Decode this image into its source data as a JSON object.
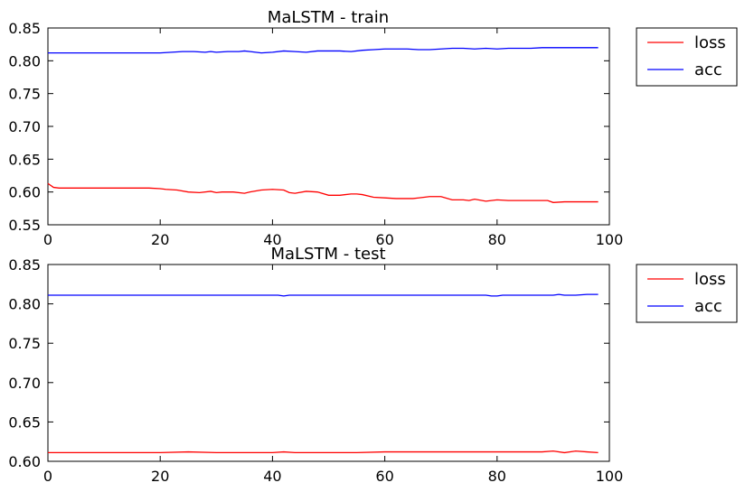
{
  "chart_data": [
    {
      "type": "line",
      "title": "MaLSTM - train",
      "xlabel": "",
      "ylabel": "",
      "xlim": [
        0,
        100
      ],
      "ylim": [
        0.55,
        0.85
      ],
      "xticks": [
        "0",
        "20",
        "40",
        "60",
        "80",
        "100"
      ],
      "yticks": [
        "0.55",
        "0.60",
        "0.65",
        "0.70",
        "0.75",
        "0.80",
        "0.85"
      ],
      "grid": false,
      "legend": {
        "placement": "outside-right-top",
        "entries": [
          "loss",
          "acc"
        ]
      },
      "series": [
        {
          "name": "loss",
          "color": "#ff0000",
          "x": [
            0,
            1,
            2,
            5,
            10,
            15,
            18,
            20,
            21,
            23,
            25,
            27,
            29,
            30,
            31,
            33,
            35,
            36,
            38,
            40,
            42,
            43,
            44,
            46,
            48,
            50,
            52,
            54,
            55,
            56,
            58,
            60,
            62,
            64,
            65,
            66,
            68,
            70,
            72,
            74,
            75,
            76,
            78,
            80,
            82,
            84,
            86,
            88,
            89,
            90,
            92,
            94,
            96,
            98
          ],
          "y": [
            0.613,
            0.607,
            0.606,
            0.606,
            0.606,
            0.606,
            0.606,
            0.605,
            0.604,
            0.603,
            0.6,
            0.599,
            0.601,
            0.599,
            0.6,
            0.6,
            0.598,
            0.6,
            0.603,
            0.604,
            0.603,
            0.599,
            0.598,
            0.601,
            0.6,
            0.595,
            0.595,
            0.597,
            0.597,
            0.596,
            0.592,
            0.591,
            0.59,
            0.59,
            0.59,
            0.591,
            0.593,
            0.593,
            0.588,
            0.588,
            0.587,
            0.589,
            0.586,
            0.588,
            0.587,
            0.587,
            0.587,
            0.587,
            0.587,
            0.584,
            0.585,
            0.585,
            0.585,
            0.585
          ]
        },
        {
          "name": "acc",
          "color": "#0000ff",
          "x": [
            0,
            5,
            10,
            15,
            20,
            22,
            24,
            26,
            28,
            29,
            30,
            32,
            34,
            35,
            36,
            38,
            40,
            42,
            44,
            46,
            48,
            50,
            52,
            54,
            56,
            58,
            60,
            62,
            64,
            66,
            68,
            70,
            72,
            74,
            76,
            78,
            80,
            82,
            84,
            86,
            88,
            90,
            92,
            94,
            96,
            98
          ],
          "y": [
            0.812,
            0.812,
            0.812,
            0.812,
            0.812,
            0.813,
            0.814,
            0.814,
            0.813,
            0.814,
            0.813,
            0.814,
            0.814,
            0.815,
            0.814,
            0.812,
            0.813,
            0.815,
            0.814,
            0.813,
            0.815,
            0.815,
            0.815,
            0.814,
            0.816,
            0.817,
            0.818,
            0.818,
            0.818,
            0.817,
            0.817,
            0.818,
            0.819,
            0.819,
            0.818,
            0.819,
            0.818,
            0.819,
            0.819,
            0.819,
            0.82,
            0.82,
            0.82,
            0.82,
            0.82,
            0.82
          ]
        }
      ]
    },
    {
      "type": "line",
      "title": "MaLSTM - test",
      "xlabel": "",
      "ylabel": "",
      "xlim": [
        0,
        100
      ],
      "ylim": [
        0.6,
        0.85
      ],
      "xticks": [
        "0",
        "20",
        "40",
        "60",
        "80",
        "100"
      ],
      "yticks": [
        "0.60",
        "0.65",
        "0.70",
        "0.75",
        "0.80",
        "0.85"
      ],
      "grid": false,
      "legend": {
        "placement": "outside-right-top",
        "entries": [
          "loss",
          "acc"
        ]
      },
      "series": [
        {
          "name": "loss",
          "color": "#ff0000",
          "x": [
            0,
            10,
            20,
            25,
            30,
            35,
            40,
            42,
            44,
            50,
            55,
            60,
            65,
            70,
            75,
            80,
            85,
            88,
            90,
            92,
            94,
            96,
            98
          ],
          "y": [
            0.611,
            0.611,
            0.611,
            0.612,
            0.611,
            0.611,
            0.611,
            0.612,
            0.611,
            0.611,
            0.611,
            0.612,
            0.612,
            0.612,
            0.612,
            0.612,
            0.612,
            0.612,
            0.613,
            0.611,
            0.613,
            0.612,
            0.611
          ]
        },
        {
          "name": "acc",
          "color": "#0000ff",
          "x": [
            0,
            10,
            20,
            30,
            40,
            41,
            42,
            43,
            44,
            50,
            60,
            70,
            78,
            79,
            80,
            81,
            82,
            90,
            91,
            92,
            93,
            94,
            96,
            98
          ],
          "y": [
            0.811,
            0.811,
            0.811,
            0.811,
            0.811,
            0.811,
            0.81,
            0.811,
            0.811,
            0.811,
            0.811,
            0.811,
            0.811,
            0.81,
            0.81,
            0.811,
            0.811,
            0.811,
            0.812,
            0.811,
            0.811,
            0.811,
            0.812,
            0.812
          ]
        }
      ]
    }
  ]
}
